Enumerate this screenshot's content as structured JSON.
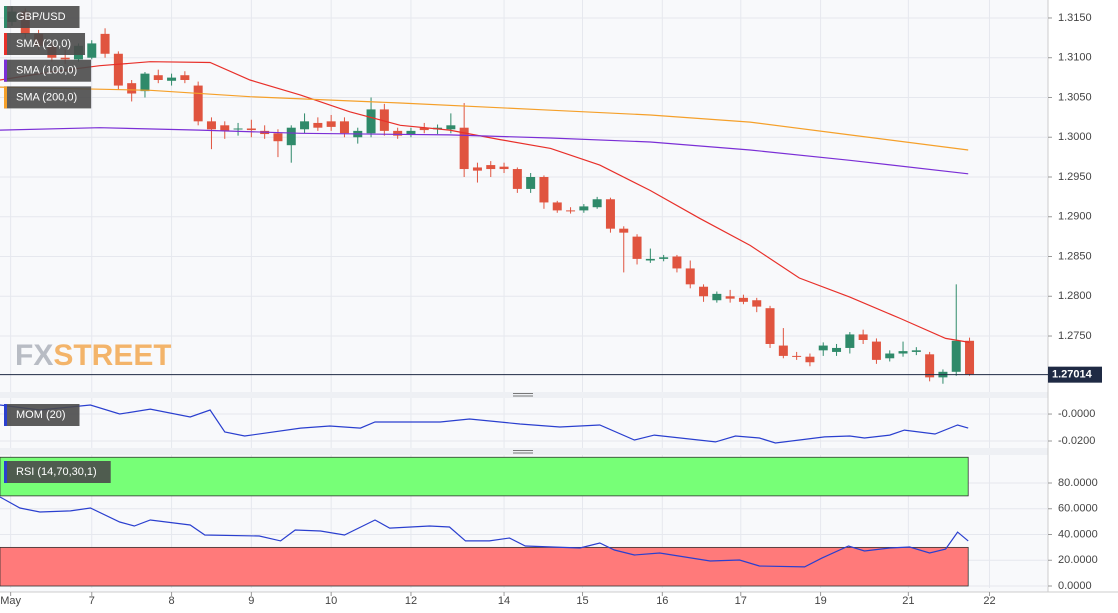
{
  "chart_data": [
    {
      "type": "candlestick",
      "title": "GBP/USD",
      "up_color": "#2f8a6a",
      "down_color": "#e0543f",
      "grid": true,
      "watermark": {
        "left": "FX",
        "right": "STREET"
      },
      "last_price": 1.27014,
      "last_price_color": "#1f2a44",
      "xlim": [
        -0.9,
        77.9
      ],
      "xticks": [
        {
          "value": -0.1,
          "label": "May"
        },
        {
          "value": 6,
          "label": "7"
        },
        {
          "value": 12,
          "label": "8"
        },
        {
          "value": 18,
          "label": "9"
        },
        {
          "value": 24,
          "label": "10"
        },
        {
          "value": 30,
          "label": "12"
        },
        {
          "value": 37,
          "label": "14"
        },
        {
          "value": 42.9,
          "label": "15"
        },
        {
          "value": 48.9,
          "label": "16"
        },
        {
          "value": 54.8,
          "label": "17"
        },
        {
          "value": 60.8,
          "label": "19"
        },
        {
          "value": 67.4,
          "label": "21"
        },
        {
          "value": 73.5,
          "label": "22"
        }
      ],
      "ylim": [
        1.26796,
        1.31726
      ],
      "yticks": [
        {
          "value": 1.315,
          "label": "1.3150"
        },
        {
          "value": 1.31,
          "label": "1.3100"
        },
        {
          "value": 1.305,
          "label": "1.3050"
        },
        {
          "value": 1.3,
          "label": "1.3000"
        },
        {
          "value": 1.295,
          "label": "1.2950"
        },
        {
          "value": 1.29,
          "label": "1.2900"
        },
        {
          "value": 1.285,
          "label": "1.2850"
        },
        {
          "value": 1.28,
          "label": "1.2800"
        },
        {
          "value": 1.275,
          "label": "1.2750"
        }
      ],
      "ohlc": [
        [
          1.3145,
          1.3165,
          1.314,
          1.3158
        ],
        [
          1.3158,
          1.3162,
          1.3125,
          1.313
        ],
        [
          1.313,
          1.3135,
          1.311,
          1.3115
        ],
        [
          1.3115,
          1.312,
          1.3095,
          1.31
        ],
        [
          1.31,
          1.311,
          1.3092,
          1.3098
        ],
        [
          1.3098,
          1.3118,
          1.3095,
          1.3115
        ],
        [
          1.31,
          1.3122,
          1.3098,
          1.3118
        ],
        [
          1.313,
          1.3137,
          1.31,
          1.3105
        ],
        [
          1.3105,
          1.3108,
          1.306,
          1.3065
        ],
        [
          1.3068,
          1.3072,
          1.3045,
          1.3055
        ],
        [
          1.3058,
          1.3082,
          1.305,
          1.308
        ],
        [
          1.3078,
          1.3085,
          1.3068,
          1.3072
        ],
        [
          1.3071,
          1.308,
          1.3065,
          1.3075
        ],
        [
          1.3078,
          1.3083,
          1.3068,
          1.3072
        ],
        [
          1.3065,
          1.307,
          1.3015,
          1.302
        ],
        [
          1.302,
          1.3025,
          1.2985,
          1.301
        ],
        [
          1.3015,
          1.302,
          1.2998,
          1.3008
        ],
        [
          1.301,
          1.3018,
          1.3002,
          1.3011
        ],
        [
          1.3011,
          1.3022,
          1.3,
          1.3009
        ],
        [
          1.3008,
          1.3015,
          1.2998,
          1.3004
        ],
        [
          1.3005,
          1.301,
          1.2975,
          1.2995
        ],
        [
          1.299,
          1.3015,
          1.2968,
          1.3012
        ],
        [
          1.301,
          1.303,
          1.3005,
          1.302
        ],
        [
          1.3018,
          1.3025,
          1.3008,
          1.3012
        ],
        [
          1.302,
          1.3028,
          1.3008,
          1.3013
        ],
        [
          1.302,
          1.3025,
          1.3,
          1.3005
        ],
        [
          1.3,
          1.3012,
          1.2992,
          1.3008
        ],
        [
          1.3005,
          1.305,
          1.3,
          1.3035
        ],
        [
          1.3035,
          1.3042,
          1.3002,
          1.3008
        ],
        [
          1.3008,
          1.3012,
          1.2998,
          1.3002
        ],
        [
          1.3003,
          1.3012,
          1.3,
          1.3008
        ],
        [
          1.3012,
          1.3018,
          1.3005,
          1.3009
        ],
        [
          1.301,
          1.3016,
          1.3004,
          1.3012
        ],
        [
          1.301,
          1.303,
          1.3005,
          1.3015
        ],
        [
          1.3012,
          1.3043,
          1.295,
          1.296
        ],
        [
          1.2962,
          1.2968,
          1.2943,
          1.2958
        ],
        [
          1.2965,
          1.297,
          1.295,
          1.296
        ],
        [
          1.2963,
          1.2968,
          1.2955,
          1.296
        ],
        [
          1.296,
          1.2962,
          1.293,
          1.2935
        ],
        [
          1.2935,
          1.2955,
          1.293,
          1.295
        ],
        [
          1.295,
          1.2952,
          1.291,
          1.2918
        ],
        [
          1.2918,
          1.292,
          1.2905,
          1.2908
        ],
        [
          1.2908,
          1.2912,
          1.2904,
          1.2907
        ],
        [
          1.2908,
          1.2916,
          1.2905,
          1.2913
        ],
        [
          1.2912,
          1.2925,
          1.291,
          1.2922
        ],
        [
          1.2922,
          1.2924,
          1.288,
          1.2885
        ],
        [
          1.2885,
          1.2888,
          1.283,
          1.288
        ],
        [
          1.2875,
          1.2878,
          1.284,
          1.2847
        ],
        [
          1.2845,
          1.286,
          1.2842,
          1.2847
        ],
        [
          1.2847,
          1.2852,
          1.2844,
          1.2849
        ],
        [
          1.285,
          1.2852,
          1.283,
          1.2835
        ],
        [
          1.2835,
          1.2845,
          1.281,
          1.2815
        ],
        [
          1.2812,
          1.2815,
          1.2793,
          1.28
        ],
        [
          1.2795,
          1.2806,
          1.2792,
          1.2803
        ],
        [
          1.28,
          1.2808,
          1.2792,
          1.2797
        ],
        [
          1.2798,
          1.2802,
          1.279,
          1.2793
        ],
        [
          1.2795,
          1.2798,
          1.278,
          1.2787
        ],
        [
          1.2785,
          1.2788,
          1.2735,
          1.274
        ],
        [
          1.2738,
          1.276,
          1.2722,
          1.2725
        ],
        [
          1.2725,
          1.273,
          1.272,
          1.2724
        ],
        [
          1.2724,
          1.2728,
          1.2712,
          1.2717
        ],
        [
          1.2732,
          1.2742,
          1.2725,
          1.2738
        ],
        [
          1.273,
          1.274,
          1.2725,
          1.2735
        ],
        [
          1.2735,
          1.2755,
          1.2728,
          1.2752
        ],
        [
          1.2752,
          1.2758,
          1.274,
          1.2745
        ],
        [
          1.2743,
          1.2747,
          1.2715,
          1.272
        ],
        [
          1.2722,
          1.2732,
          1.2718,
          1.2728
        ],
        [
          1.2728,
          1.2743,
          1.2724,
          1.2731
        ],
        [
          1.273,
          1.2736,
          1.2726,
          1.2732
        ],
        [
          1.2727,
          1.273,
          1.2693,
          1.2698
        ],
        [
          1.2698,
          1.2708,
          1.269,
          1.2705
        ],
        [
          1.2705,
          1.2815,
          1.27,
          1.2744
        ],
        [
          1.2744,
          1.2748,
          1.27,
          1.2702
        ]
      ],
      "series": [
        {
          "name": "SMA (20,0)",
          "color": "#e8302a",
          "x": [
            -0.9,
            2.9,
            6.6,
            10.4,
            14.9,
            17.9,
            21.7,
            25.4,
            29.2,
            32.9,
            36.7,
            40.5,
            44.2,
            48,
            51.7,
            55.5,
            59.2,
            63,
            66.8,
            70.2,
            72
          ],
          "values": [
            1.3072,
            1.3082,
            1.309,
            1.3095,
            1.3094,
            1.3072,
            1.3053,
            1.3032,
            1.3015,
            1.3009,
            1.2997,
            1.2986,
            1.2965,
            1.2933,
            1.2898,
            1.2864,
            1.2823,
            1.2799,
            1.2772,
            1.2747,
            1.2742
          ]
        },
        {
          "name": "SMA (100,0)",
          "color": "#7b2fd6",
          "x": [
            -0.9,
            6.6,
            14.1,
            21.7,
            32.9,
            40.5,
            48,
            55.5,
            63,
            71.9
          ],
          "values": [
            1.3009,
            1.3012,
            1.3009,
            1.3005,
            1.3003,
            1.2999,
            1.2994,
            1.2984,
            1.2971,
            1.2954
          ]
        },
        {
          "name": "SMA (200,0)",
          "color": "#f5a02a",
          "x": [
            -0.9,
            10.4,
            17.9,
            29.2,
            40.5,
            48,
            55.5,
            63,
            71.9
          ],
          "values": [
            1.3063,
            1.3059,
            1.3051,
            1.3043,
            1.3034,
            1.3028,
            1.3019,
            1.3003,
            1.2984
          ]
        }
      ]
    },
    {
      "type": "line",
      "grid": true,
      "ylim": [
        -0.0252,
        0.0119
      ],
      "yticks": [
        {
          "value": 0,
          "label": "-0.0000"
        },
        {
          "value": -0.02,
          "label": "-0.0200"
        }
      ],
      "series": [
        {
          "name": "MOM (20)",
          "color": "#2a3fcf",
          "x": [
            -0.9,
            2.1,
            5.9,
            8.1,
            10.4,
            13.4,
            14.9,
            16,
            17.5,
            21.7,
            23.9,
            26.2,
            27.3,
            32.2,
            34.4,
            38.2,
            41.2,
            44.2,
            46.8,
            48.3,
            52.9,
            54.4,
            56.2,
            57.4,
            61.1,
            63,
            64.1,
            66,
            67.1,
            69.4,
            71.1,
            71.9
          ],
          "values": [
            0.0067,
            0.003,
            0.0067,
            0,
            0.0037,
            -0.0022,
            0.003,
            -0.0133,
            -0.0163,
            -0.0104,
            -0.0089,
            -0.0104,
            -0.0059,
            -0.0059,
            -0.0037,
            -0.0074,
            -0.0096,
            -0.0081,
            -0.0193,
            -0.0156,
            -0.0207,
            -0.0163,
            -0.0178,
            -0.0215,
            -0.017,
            -0.0163,
            -0.0178,
            -0.0156,
            -0.0119,
            -0.0148,
            -0.0081,
            -0.0104
          ]
        }
      ]
    },
    {
      "type": "line",
      "grid": true,
      "ylim": [
        -1.55,
        101.75
      ],
      "yticks": [
        {
          "value": 80,
          "label": "80.0000"
        },
        {
          "value": 60,
          "label": "60.0000"
        },
        {
          "value": 40,
          "label": "40.0000"
        },
        {
          "value": 20,
          "label": "20.0000"
        },
        {
          "value": 0,
          "label": "0.0000"
        }
      ],
      "bands": [
        {
          "from": 70,
          "to": 100,
          "color": "#77ff77"
        },
        {
          "from": 0,
          "to": 30,
          "color": "#ff7a7a"
        }
      ],
      "series": [
        {
          "name": "RSI (14,70,30,1)",
          "color": "#2a3fcf",
          "x": [
            -0.9,
            0.6,
            2.1,
            4.4,
            5.9,
            8.1,
            9.2,
            10.4,
            13.4,
            14.5,
            18.6,
            20.2,
            21.3,
            23.2,
            25,
            27.3,
            28.4,
            31.4,
            32.9,
            34.1,
            35.9,
            37.4,
            38.6,
            42.7,
            44.2,
            45.3,
            46.8,
            48.7,
            52.5,
            54.7,
            56.2,
            59.6,
            60.9,
            62.9,
            64.1,
            66,
            67.5,
            69,
            70.2,
            71.1,
            71.9
          ],
          "values": [
            69.1,
            60.6,
            57.5,
            58.3,
            60.6,
            49.7,
            46.6,
            51.3,
            47.4,
            39.6,
            38.8,
            35,
            43.5,
            42.7,
            39.6,
            51.3,
            45,
            46.6,
            45.8,
            35,
            35,
            37.3,
            31.1,
            29.5,
            33.4,
            28,
            24.1,
            25.6,
            19.4,
            20.2,
            15.5,
            14.8,
            21.7,
            31.1,
            27.2,
            29.5,
            30.3,
            25.6,
            28.7,
            41.9,
            35
          ]
        }
      ]
    }
  ]
}
